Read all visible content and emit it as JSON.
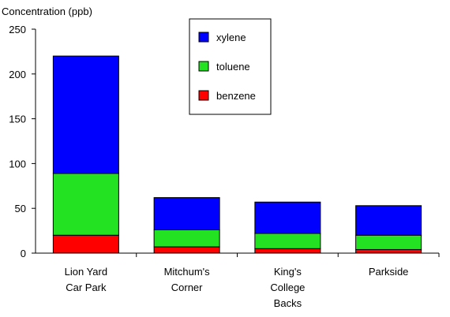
{
  "chart_data": {
    "type": "bar",
    "stacked": true,
    "ylabel": "Concentration (ppb)",
    "ylim": [
      0,
      250
    ],
    "yticks": [
      0,
      50,
      100,
      150,
      200,
      250
    ],
    "categories": [
      [
        "Lion Yard",
        "Car Park"
      ],
      [
        "Mitchum's",
        "Corner"
      ],
      [
        "King's",
        "College",
        "Backs"
      ],
      [
        "Parkside"
      ]
    ],
    "series": [
      {
        "name": "benzene",
        "color": "#ff0000",
        "values": [
          20,
          7,
          5,
          4
        ]
      },
      {
        "name": "toluene",
        "color": "#22e222",
        "values": [
          69,
          19,
          17,
          16
        ]
      },
      {
        "name": "xylene",
        "color": "#0000ff",
        "values": [
          131,
          36,
          35,
          33
        ]
      }
    ],
    "legend": {
      "position": "top-center",
      "order": [
        "xylene",
        "toluene",
        "benzene"
      ]
    },
    "grid": false
  }
}
